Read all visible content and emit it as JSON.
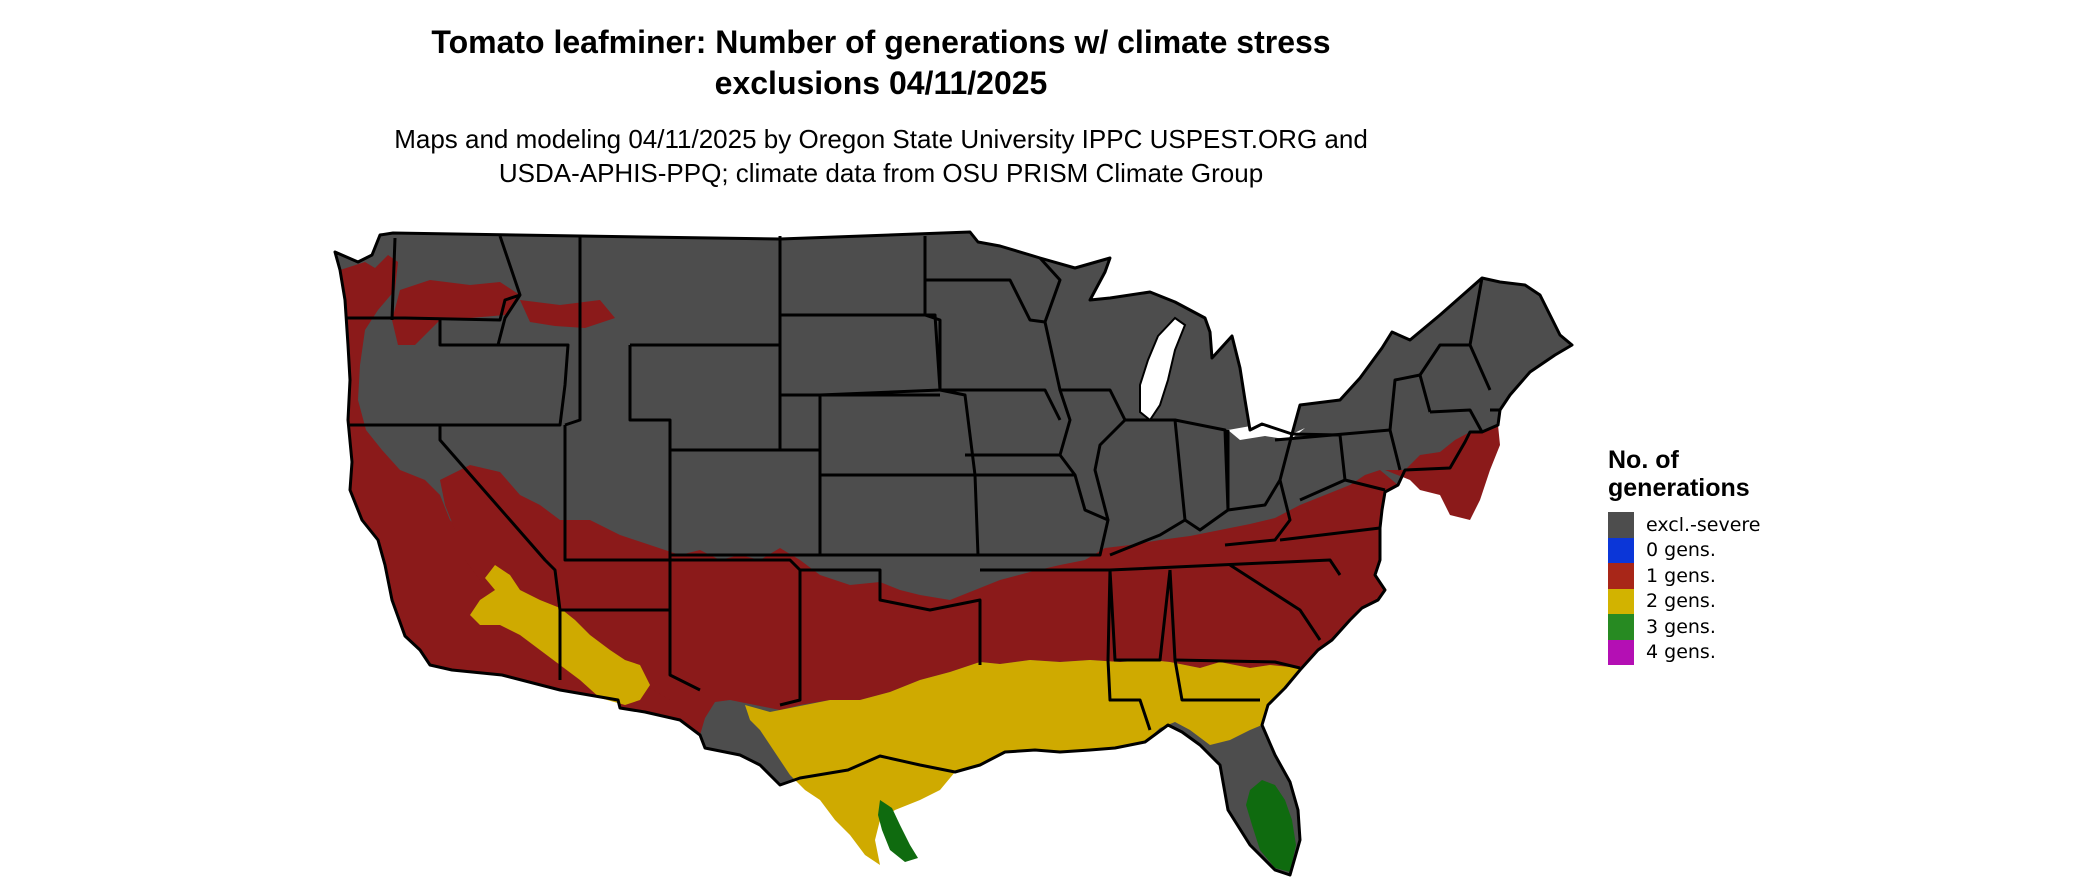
{
  "title": {
    "line1": "Tomato leafminer: Number of generations w/ climate stress",
    "line2": "exclusions 04/11/2025"
  },
  "subtitle": {
    "line1": "Maps and modeling 04/11/2025 by Oregon State University IPPC USPEST.ORG and",
    "line2": "USDA-APHIS-PPQ; climate data from OSU PRISM Climate Group"
  },
  "legend": {
    "title_line1": "No. of",
    "title_line2": "generations",
    "items": [
      {
        "label": "excl.-severe",
        "color": "#4d4d4d"
      },
      {
        "label": "0 gens.",
        "color": "#0b36d8"
      },
      {
        "label": "1 gens.",
        "color": "#a82618"
      },
      {
        "label": "2 gens.",
        "color": "#d2b300"
      },
      {
        "label": "3 gens.",
        "color": "#278a22"
      },
      {
        "label": "4 gens.",
        "color": "#b40fb4"
      }
    ]
  },
  "map_colors": {
    "excluded": "#4d4d4d",
    "one_gen": "#8b1a1a",
    "two_gen": "#cfaa00",
    "three_gen": "#0f6b0f",
    "state_border": "#000000"
  }
}
